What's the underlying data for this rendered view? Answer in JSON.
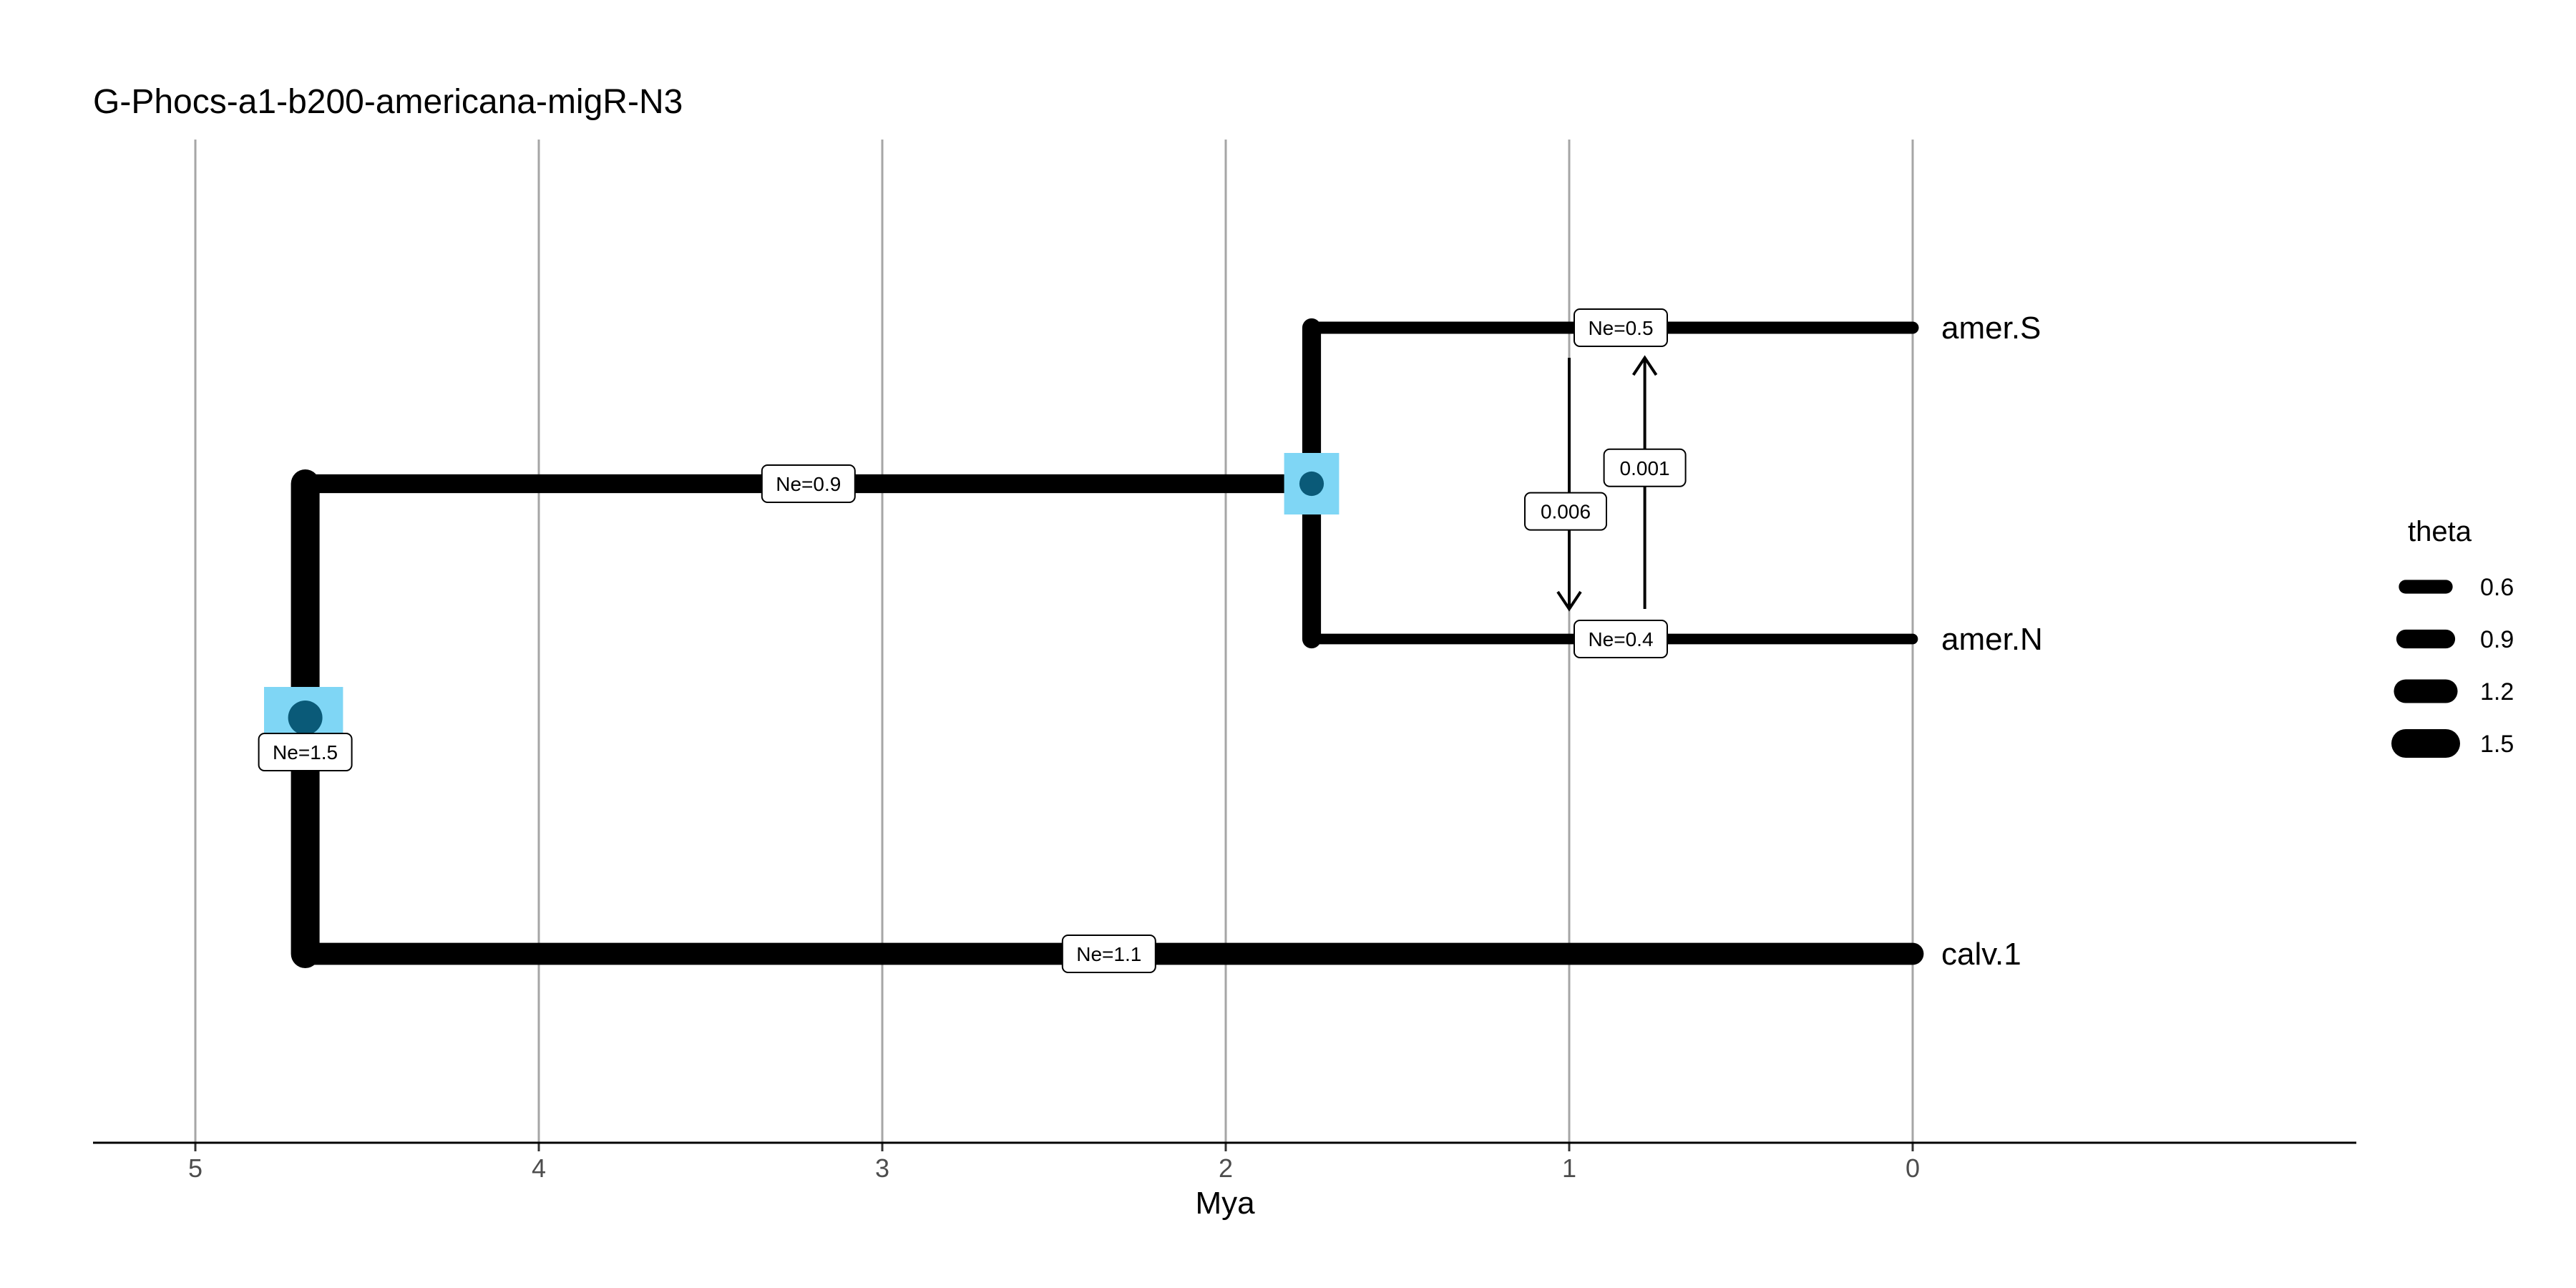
{
  "chart_data": {
    "type": "tree",
    "title": "G-Phocs-a1-b200-americana-migR-N3",
    "xlabel": "Mya",
    "x_reversed": true,
    "xlim": [
      5.3,
      -1.3
    ],
    "x_ticks": [
      5,
      4,
      3,
      2,
      1,
      0
    ],
    "x_tick_labels": [
      "5",
      "4",
      "3",
      "2",
      "1",
      "0"
    ],
    "grid_vertical": true,
    "branch_color": "#000000",
    "node_marker_color": "#0a5a78",
    "node_ci_color": "#7fd6f5",
    "nodes": [
      {
        "id": "root",
        "time": 4.68,
        "ne_label": "Ne=1.5",
        "theta": 1.5,
        "ci": [
          4.8,
          4.57
        ],
        "children": [
          "amer",
          "calv.1"
        ]
      },
      {
        "id": "amer",
        "time": 1.75,
        "ne_label": "Ne=0.9",
        "theta": 0.9,
        "ci": [
          1.83,
          1.67
        ],
        "children": [
          "amer.S",
          "amer.N"
        ]
      }
    ],
    "tips": [
      {
        "name": "amer.S",
        "time": 0,
        "ne_label": "Ne=0.5",
        "theta": 0.5
      },
      {
        "name": "amer.N",
        "time": 0,
        "ne_label": "Ne=0.4",
        "theta": 0.4
      },
      {
        "name": "calv.1",
        "time": 0,
        "ne_label": "Ne=1.1",
        "theta": 1.1
      }
    ],
    "migrations": [
      {
        "from": "amer.S",
        "to": "amer.N",
        "rate_label": "0.006",
        "time": 1.0
      },
      {
        "from": "amer.N",
        "to": "amer.S",
        "rate_label": "0.001",
        "time": 0.78
      }
    ],
    "legend": {
      "title": "theta",
      "position": "right",
      "values": [
        0.6,
        0.9,
        1.2,
        1.5
      ],
      "labels": [
        "0.6",
        "0.9",
        "1.2",
        "1.5"
      ]
    }
  }
}
